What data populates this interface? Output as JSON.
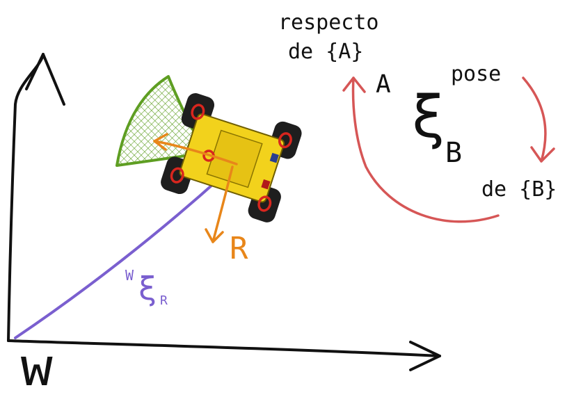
{
  "labels": {
    "world_frame": "W",
    "robot_frame": "R",
    "pose_symbol": "ξ",
    "pose_superscript": "A",
    "pose_subscript": "B",
    "pose_word": "pose",
    "respecto_line1": "respecto",
    "respecto_line2": "de {A}",
    "de_b": "de {B}",
    "world_pose_superscript": "W",
    "world_pose_symbol": "ξ",
    "world_pose_subscript": "R"
  },
  "colors": {
    "axes": "#111111",
    "robot_axes": "#e8861a",
    "robot_body": "#f2d21c",
    "robot_wheels": "#1e1e1e",
    "wheel_markers": "#d8261e",
    "field_of_view": "#5e9e22",
    "pose_vector": "#7a5fcf",
    "cycle_arrows": "#d65656"
  },
  "icons": [
    "robot-icon",
    "field-of-view-icon"
  ]
}
